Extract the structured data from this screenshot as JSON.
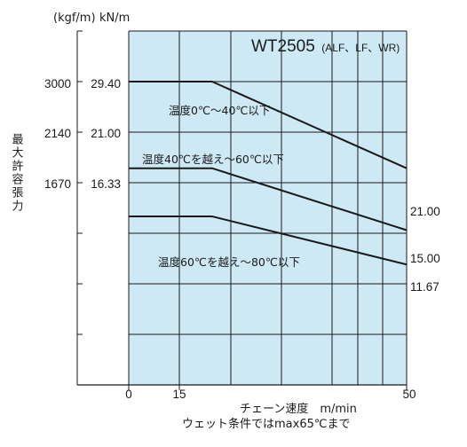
{
  "units": {
    "kgf": "(kgf/m)",
    "kn": "kN/m"
  },
  "ylabel": "最大許容張力",
  "xlabel": "チェーン速度　m/min",
  "note": "ウェット条件ではmax65℃まで",
  "title": {
    "main": "WT2505",
    "sub": "(ALF、LF、WR)"
  },
  "colors": {
    "plot_bg": "#cde9f5",
    "grid": "#1a1a1a",
    "line": "#1a1a1a"
  },
  "chart_data": {
    "type": "line",
    "title": "WT2505 (ALF、LF、WR)",
    "xlabel": "チェーン速度　m/min",
    "ylabel": "最大許容張力",
    "xlim": [
      0,
      50
    ],
    "ylim": [
      0,
      41.1
    ],
    "grid": true,
    "x_ticks": [
      0,
      15,
      50
    ],
    "y_ticks_kn": [
      "29.40",
      "21.00",
      "16.33"
    ],
    "y_ticks_kgf": [
      "3000",
      "2140",
      "1670"
    ],
    "series": [
      {
        "name": "温度0℃～40℃以下",
        "x": [
          0,
          15,
          50
        ],
        "y": [
          29.4,
          29.4,
          21.0
        ],
        "end_label": "21.00"
      },
      {
        "name": "温度40℃を越え～60℃以下",
        "x": [
          0,
          15,
          50
        ],
        "y": [
          21.0,
          21.0,
          15.0
        ],
        "end_label": "15.00"
      },
      {
        "name": "温度60℃を越え～80℃以下",
        "x": [
          0,
          15,
          50
        ],
        "y": [
          16.33,
          16.33,
          11.67
        ],
        "end_label": "11.67"
      }
    ]
  }
}
